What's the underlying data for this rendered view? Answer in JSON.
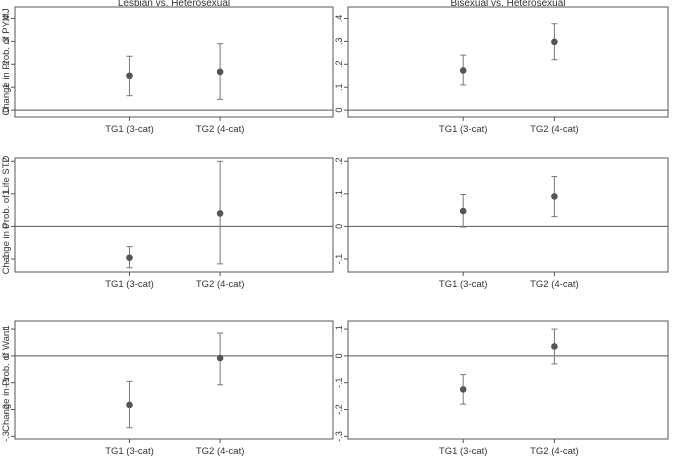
{
  "chart_data": [
    {
      "type": "scatter",
      "panel": "top-left",
      "title": "Lesbian vs. Heterosexual",
      "ylabel": "Change in  Prob. of PYMJ",
      "categories": [
        "TG1 (3-cat)",
        "TG2 (4-cat)"
      ],
      "estimates": [
        0.15,
        0.167
      ],
      "ci_low": [
        0.063,
        0.047
      ],
      "ci_high": [
        0.235,
        0.29
      ],
      "ylim": [
        -0.03,
        0.45
      ],
      "yticks": [
        0,
        0.1,
        0.2,
        0.3,
        0.4
      ],
      "ytick_labels": [
        "0",
        ".1",
        ".2",
        ".3",
        ".4"
      ],
      "reference_line": 0
    },
    {
      "type": "scatter",
      "panel": "top-right",
      "title": "Bisexual vs. Heterosexual",
      "ylabel": "",
      "categories": [
        "TG1 (3-cat)",
        "TG2 (4-cat)"
      ],
      "estimates": [
        0.173,
        0.298
      ],
      "ci_low": [
        0.11,
        0.22
      ],
      "ci_high": [
        0.24,
        0.377
      ],
      "ylim": [
        -0.03,
        0.45
      ],
      "yticks": [
        0,
        0.1,
        0.2,
        0.3,
        0.4
      ],
      "ytick_labels": [
        "0",
        ".1",
        ".2",
        ".3",
        ".4"
      ],
      "reference_line": 0
    },
    {
      "type": "scatter",
      "panel": "middle-left",
      "title": "",
      "ylabel": "Change in Prob. of Life STD",
      "categories": [
        "TG1 (3-cat)",
        "TG2 (4-cat)"
      ],
      "estimates": [
        -0.096,
        0.04
      ],
      "ci_low": [
        -0.127,
        -0.115
      ],
      "ci_high": [
        -0.062,
        0.2
      ],
      "ylim": [
        -0.14,
        0.21
      ],
      "yticks": [
        -0.1,
        0,
        0.1,
        0.2
      ],
      "ytick_labels": [
        "-.1",
        "0",
        ".1",
        ".2"
      ],
      "reference_line": 0
    },
    {
      "type": "scatter",
      "panel": "middle-right",
      "title": "",
      "ylabel": "",
      "categories": [
        "TG1 (3-cat)",
        "TG2 (4-cat)"
      ],
      "estimates": [
        0.047,
        0.092
      ],
      "ci_low": [
        -0.002,
        0.03
      ],
      "ci_high": [
        0.098,
        0.153
      ],
      "ylim": [
        -0.14,
        0.21
      ],
      "yticks": [
        -0.1,
        0,
        0.1,
        0.2
      ],
      "ytick_labels": [
        "-.1",
        "0",
        ".1",
        ".2"
      ],
      "reference_line": 0
    },
    {
      "type": "scatter",
      "panel": "bottom-left",
      "title": "",
      "ylabel": "Change in  Prob. of Want",
      "categories": [
        "TG1 (3-cat)",
        "TG2 (4-cat)"
      ],
      "estimates": [
        -0.183,
        -0.008
      ],
      "ci_low": [
        -0.268,
        -0.108
      ],
      "ci_high": [
        -0.095,
        0.085
      ],
      "ylim": [
        -0.31,
        0.13
      ],
      "yticks": [
        -0.3,
        -0.2,
        -0.1,
        0,
        0.1
      ],
      "ytick_labels": [
        "-.3",
        "-.2",
        "-.1",
        "0",
        ".1"
      ],
      "reference_line": 0
    },
    {
      "type": "scatter",
      "panel": "bottom-right",
      "title": "",
      "ylabel": "",
      "categories": [
        "TG1 (3-cat)",
        "TG2 (4-cat)"
      ],
      "estimates": [
        -0.125,
        0.035
      ],
      "ci_low": [
        -0.18,
        -0.03
      ],
      "ci_high": [
        -0.07,
        0.1
      ],
      "ylim": [
        -0.31,
        0.13
      ],
      "yticks": [
        -0.3,
        -0.2,
        -0.1,
        0,
        0.1
      ],
      "ytick_labels": [
        "-.3",
        "-.2",
        "-.1",
        "0",
        ".1"
      ],
      "reference_line": 0
    }
  ],
  "colors": {
    "frame": "#555555",
    "marker": "#555555",
    "ci": "#777777",
    "text": "#333333"
  }
}
